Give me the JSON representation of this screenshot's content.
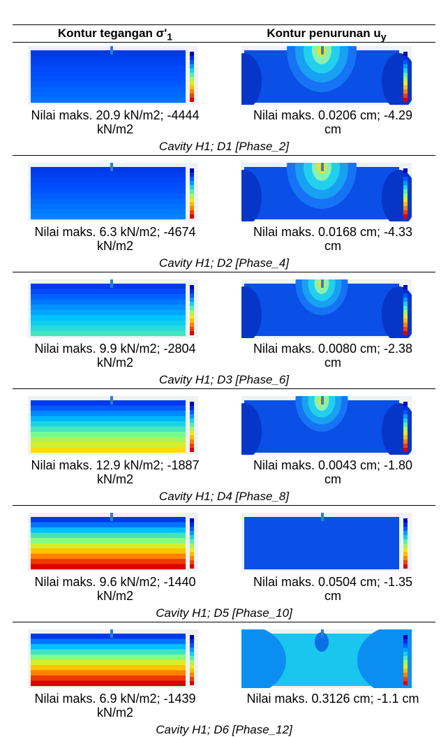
{
  "header": {
    "col1": {
      "text": "Kontur tegangan σ'",
      "sub": "1"
    },
    "col2": {
      "text": "Kontur penurunan u",
      "sub": "y"
    }
  },
  "rows": [
    {
      "stress_caption": [
        "Nilai maks. 20.9 kN/m2; -4444",
        "kN/m2"
      ],
      "settlement_caption": [
        "Nilai maks. 0.0206 cm; -4.29",
        "cm"
      ],
      "label": "Cavity H1; D1 [Phase_2]"
    },
    {
      "stress_caption": [
        "Nilai maks. 6.3 kN/m2; -4674",
        "kN/m2"
      ],
      "settlement_caption": [
        "Nilai maks. 0.0168 cm; -4.33",
        "cm"
      ],
      "label": "Cavity H1; D2 [Phase_4]"
    },
    {
      "stress_caption": [
        "Nilai maks. 9.9 kN/m2; -2804",
        "kN/m2"
      ],
      "settlement_caption": [
        "Nilai maks. 0.0080 cm; -2.38",
        "cm"
      ],
      "label": "Cavity H1; D3 [Phase_6]"
    },
    {
      "stress_caption": [
        "Nilai maks. 12.9 kN/m2; -1887",
        "kN/m2"
      ],
      "settlement_caption": [
        "Nilai maks. 0.0043 cm; -1.80",
        "cm"
      ],
      "label": "Cavity H1; D4 [Phase_8]"
    },
    {
      "stress_caption": [
        "Nilai maks. 9.6 kN/m2; -1440",
        "kN/m2"
      ],
      "settlement_caption": [
        "Nilai maks. 0.0504 cm; -1.35",
        "cm"
      ],
      "label": "Cavity H1; D5 [Phase_10]"
    },
    {
      "stress_caption": [
        "Nilai maks. 6.9 kN/m2; -1439",
        "kN/m2"
      ],
      "settlement_caption": [
        "Nilai maks. 0.3126 cm; -1.1 cm"
      ],
      "label": "Cavity H1; D6 [Phase_12]"
    }
  ]
}
